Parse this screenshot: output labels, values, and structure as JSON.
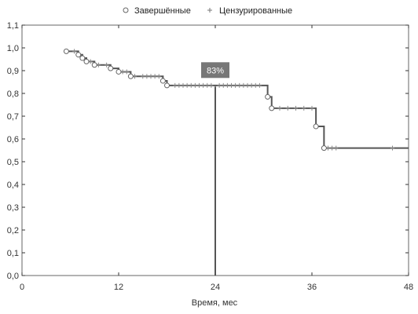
{
  "chart_data": {
    "type": "line",
    "xlabel": "Время, мес",
    "ylabel": "",
    "xlim": [
      0,
      48
    ],
    "ylim": [
      0.0,
      1.1
    ],
    "xticks": [
      0,
      12,
      24,
      36,
      48
    ],
    "yticks": [
      0.0,
      0.1,
      0.2,
      0.3,
      0.4,
      0.5,
      0.6,
      0.7,
      0.8,
      0.9,
      1.0,
      1.1
    ],
    "ytick_labels": [
      "0,0",
      "0,1",
      "0,2",
      "0,3",
      "0,4",
      "0,5",
      "0,6",
      "0,7",
      "0,8",
      "0,9",
      "1,0",
      "1,1"
    ],
    "grid": false,
    "legend": {
      "position": "top-center",
      "entries": [
        {
          "marker": "circle",
          "label": "Завершённые"
        },
        {
          "marker": "plus",
          "label": "Цензурированные"
        }
      ]
    },
    "series": [
      {
        "steps": [
          [
            5.5,
            0.985
          ],
          [
            7.0,
            0.97
          ],
          [
            7.5,
            0.955
          ],
          [
            8.0,
            0.94
          ],
          [
            9.0,
            0.925
          ],
          [
            11.0,
            0.91
          ],
          [
            12.0,
            0.895
          ],
          [
            13.5,
            0.875
          ],
          [
            17.5,
            0.855
          ],
          [
            18.0,
            0.835
          ],
          [
            30.5,
            0.785
          ],
          [
            31.0,
            0.735
          ],
          [
            36.5,
            0.655
          ],
          [
            37.5,
            0.56
          ],
          [
            48.0,
            0.56
          ]
        ],
        "events": [
          [
            5.5,
            0.985
          ],
          [
            7.0,
            0.97
          ],
          [
            7.5,
            0.955
          ],
          [
            8.0,
            0.94
          ],
          [
            9.0,
            0.925
          ],
          [
            11.0,
            0.91
          ],
          [
            12.0,
            0.895
          ],
          [
            13.5,
            0.875
          ],
          [
            17.5,
            0.855
          ],
          [
            18.0,
            0.835
          ],
          [
            30.5,
            0.785
          ],
          [
            31.0,
            0.735
          ],
          [
            36.5,
            0.655
          ],
          [
            37.5,
            0.56
          ]
        ],
        "censored": [
          [
            6.5,
            0.985
          ],
          [
            8.5,
            0.94
          ],
          [
            9.5,
            0.925
          ],
          [
            10.5,
            0.925
          ],
          [
            12.5,
            0.895
          ],
          [
            13.0,
            0.895
          ],
          [
            14.0,
            0.875
          ],
          [
            15.0,
            0.875
          ],
          [
            15.5,
            0.875
          ],
          [
            16.0,
            0.875
          ],
          [
            16.5,
            0.875
          ],
          [
            17.0,
            0.875
          ],
          [
            19.0,
            0.835
          ],
          [
            19.5,
            0.835
          ],
          [
            20.0,
            0.835
          ],
          [
            20.5,
            0.835
          ],
          [
            21.0,
            0.835
          ],
          [
            21.5,
            0.835
          ],
          [
            22.0,
            0.835
          ],
          [
            22.5,
            0.835
          ],
          [
            23.0,
            0.835
          ],
          [
            23.5,
            0.835
          ],
          [
            24.5,
            0.835
          ],
          [
            25.0,
            0.835
          ],
          [
            25.5,
            0.835
          ],
          [
            26.0,
            0.835
          ],
          [
            26.5,
            0.835
          ],
          [
            27.0,
            0.835
          ],
          [
            27.5,
            0.835
          ],
          [
            28.0,
            0.835
          ],
          [
            28.5,
            0.835
          ],
          [
            29.0,
            0.835
          ],
          [
            29.5,
            0.835
          ],
          [
            32.0,
            0.735
          ],
          [
            33.0,
            0.735
          ],
          [
            34.0,
            0.735
          ],
          [
            35.0,
            0.735
          ],
          [
            36.0,
            0.735
          ],
          [
            38.0,
            0.56
          ],
          [
            38.5,
            0.56
          ],
          [
            39.0,
            0.56
          ],
          [
            46.0,
            0.56
          ]
        ]
      }
    ],
    "annotation": {
      "x": 24,
      "y": 0.83,
      "label": "83%"
    }
  },
  "colors": {
    "curve": "#555555",
    "marker_fill": "#ffffff",
    "marker_stroke": "#666666",
    "annotation_bg": "#777777",
    "annotation_text": "#ffffff",
    "axis": "#333333"
  }
}
